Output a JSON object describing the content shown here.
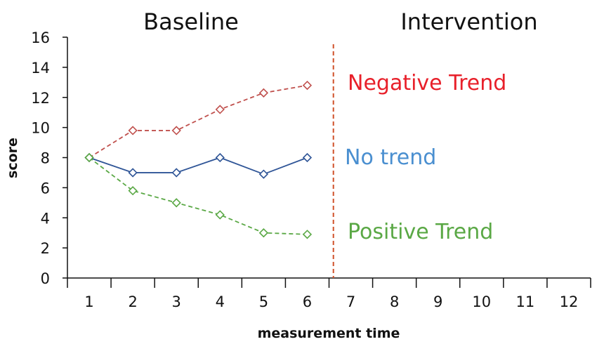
{
  "chart_data": {
    "type": "line",
    "phases": [
      "Baseline",
      "Intervention"
    ],
    "xlabel": "measurement time",
    "ylabel": "score",
    "x_ticks": [
      1,
      2,
      3,
      4,
      5,
      6,
      7,
      8,
      9,
      10,
      11,
      12
    ],
    "y_ticks": [
      0,
      2,
      4,
      6,
      8,
      10,
      12,
      14,
      16
    ],
    "xlim": [
      0.5,
      12.5
    ],
    "ylim": [
      0,
      16
    ],
    "phase_change_x": 6.6,
    "grid": false,
    "series": [
      {
        "x": [
          1,
          2,
          3,
          4,
          5,
          6
        ],
        "values": [
          8,
          9.8,
          9.8,
          11.2,
          12.3,
          12.8
        ],
        "color": "#c0504d",
        "marker": "diamond",
        "line": "dashed"
      },
      {
        "x": [
          1,
          2,
          3,
          4,
          5,
          6
        ],
        "values": [
          8,
          7,
          7,
          8,
          6.9,
          8
        ],
        "color": "#2f5597",
        "marker": "diamond",
        "line": "solid"
      },
      {
        "x": [
          1,
          2,
          3,
          4,
          5,
          6
        ],
        "values": [
          8,
          5.8,
          5,
          4.2,
          3,
          2.9
        ],
        "color": "#5aa845",
        "marker": "diamond",
        "line": "dashed"
      }
    ],
    "annotations": [
      {
        "text": "Negative Trend",
        "color": "#e8202a"
      },
      {
        "text": "No trend",
        "color": "#4a8fd0"
      },
      {
        "text": "Positive Trend",
        "color": "#5aa845"
      }
    ],
    "phase_line_color": "#d0512a"
  }
}
